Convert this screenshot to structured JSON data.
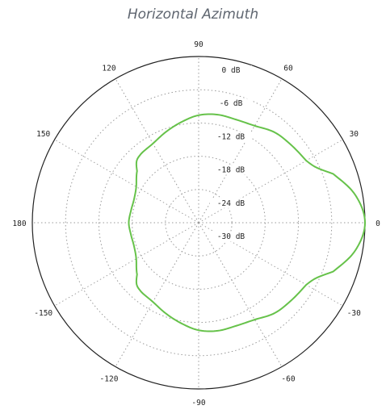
{
  "chart_data": {
    "type": "line",
    "subtype": "polar",
    "title": "Horizontal Azimuth",
    "angle_unit": "degrees",
    "angle_direction": "counter-clockwise",
    "zero_angle": "right",
    "angle_ticks": [
      0,
      30,
      60,
      90,
      120,
      150,
      180,
      -150,
      -120,
      -90,
      -60,
      -30
    ],
    "angle_tick_labels": [
      "0",
      "30",
      "60",
      "90",
      "120",
      "150",
      "180",
      "-150",
      "-120",
      "-90",
      "-60",
      "-30"
    ],
    "radial_range_db": [
      -30,
      0
    ],
    "radial_ticks_db": [
      0,
      -6,
      -12,
      -18,
      -24,
      -30
    ],
    "radial_tick_labels": [
      "0 dB",
      "-6 dB",
      "-12 dB",
      "-18 dB",
      "-24 dB",
      "-30 dB"
    ],
    "grid": true,
    "series": [
      {
        "color": "#66c24a",
        "x": [
          0,
          10,
          20,
          25,
          30,
          40,
          50,
          60,
          70,
          80,
          90,
          100,
          110,
          120,
          130,
          135,
          140,
          150,
          160,
          170,
          180,
          -170,
          -160,
          -150,
          -140,
          -135,
          -130,
          -120,
          -110,
          -100,
          -90,
          -80,
          -70,
          -60,
          -50,
          -40,
          -30,
          -25,
          -20,
          -10
        ],
        "values": [
          0,
          -1.3,
          -4.2,
          -6.5,
          -7.6,
          -8.2,
          -8.7,
          -9.8,
          -10.2,
          -10.2,
          -10.6,
          -11.6,
          -12.6,
          -13.5,
          -13.8,
          -14.2,
          -15.5,
          -17.0,
          -17.6,
          -17.6,
          -17.4,
          -17.6,
          -17.6,
          -17.0,
          -15.5,
          -14.2,
          -13.8,
          -13.5,
          -12.6,
          -11.6,
          -10.6,
          -10.2,
          -10.2,
          -9.8,
          -8.7,
          -8.2,
          -7.6,
          -6.5,
          -4.2,
          -1.3
        ]
      }
    ]
  }
}
